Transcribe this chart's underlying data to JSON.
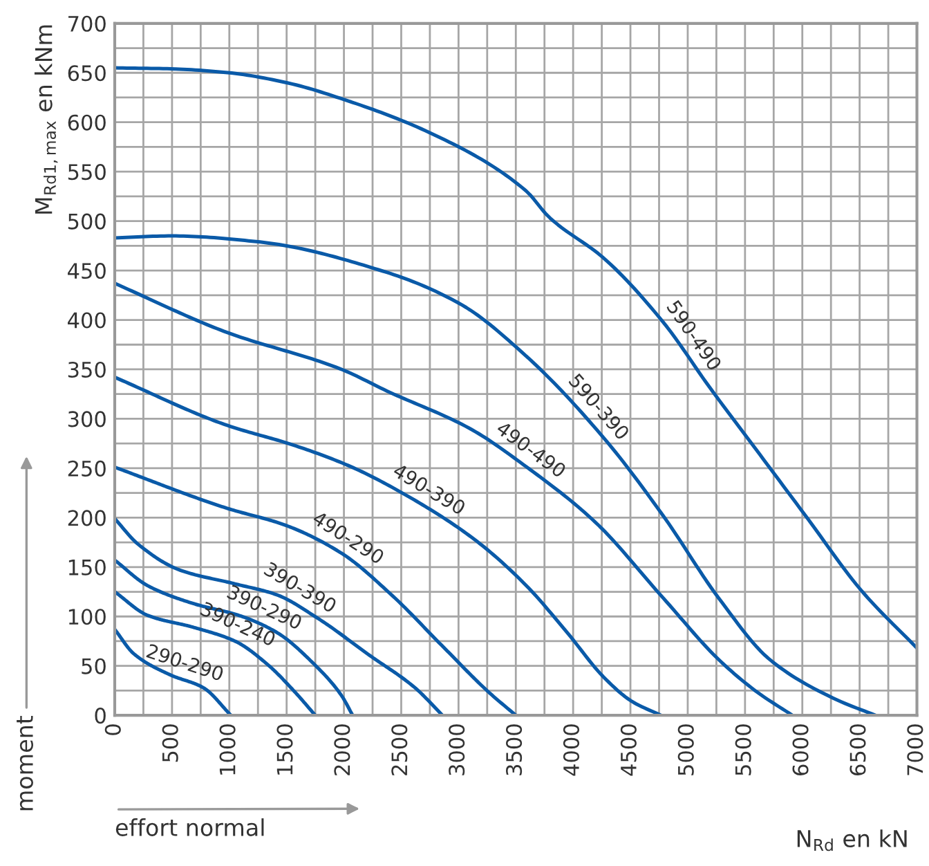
{
  "chart_data": {
    "type": "line",
    "xlabel": "N$_{Rd}$ en kN",
    "ylabel": "M$_{Rd1,max}$ en kNm",
    "xlim": [
      0,
      7000
    ],
    "ylim": [
      0,
      700
    ],
    "xticks": [
      0,
      {
        "value": 250,
        "label": null
      },
      500,
      {
        "value": 750,
        "label": null
      },
      1000,
      {
        "value": 1250,
        "label": null
      },
      1500,
      {
        "value": 1750,
        "label": null
      },
      2000,
      {
        "value": 2250,
        "label": null
      },
      2500,
      {
        "value": 2750,
        "label": null
      },
      3000,
      {
        "value": 3250,
        "label": null
      },
      3500,
      {
        "value": 3750,
        "label": null
      },
      4000,
      {
        "value": 4250,
        "label": null
      },
      4500,
      {
        "value": 4750,
        "label": null
      },
      5000,
      {
        "value": 5250,
        "label": null
      },
      5500,
      {
        "value": 5750,
        "label": null
      },
      6000,
      {
        "value": 6250,
        "label": null
      },
      6500,
      {
        "value": 6750,
        "label": null
      },
      7000
    ],
    "yticks": [
      0,
      {
        "value": 25,
        "label": null
      },
      50,
      {
        "value": 75,
        "label": null
      },
      100,
      {
        "value": 125,
        "label": null
      },
      150,
      {
        "value": 175,
        "label": null
      },
      200,
      {
        "value": 225,
        "label": null
      },
      250,
      {
        "value": 275,
        "label": null
      },
      300,
      {
        "value": 325,
        "label": null
      },
      350,
      {
        "value": 375,
        "label": null
      },
      400,
      {
        "value": 425,
        "label": null
      },
      450,
      {
        "value": 475,
        "label": null
      },
      500,
      {
        "value": 525,
        "label": null
      },
      550,
      {
        "value": 575,
        "label": null
      },
      600,
      {
        "value": 625,
        "label": null
      },
      650,
      {
        "value": 675,
        "label": null
      },
      700
    ],
    "grid": true,
    "marker": "none",
    "line_style": "solid",
    "series": [
      {
        "name": "590-490",
        "color": "#0a5aa8",
        "x": [
          0,
          500,
          1000,
          1500,
          2000,
          2775,
          3585,
          3790,
          4272,
          4791,
          5190,
          5551,
          6034,
          6517,
          7000
        ],
        "values": [
          655,
          654,
          650,
          640,
          623,
          588,
          531,
          504,
          462,
          397,
          332,
          276,
          201,
          126,
          68
        ]
      },
      {
        "name": "590-390",
        "color": "#0a5aa8",
        "x": [
          0,
          500,
          1255,
          2377,
          3017,
          3585,
          4272,
          4791,
          5274,
          5720,
          6276,
          6638
        ],
        "values": [
          483,
          485,
          479,
          448,
          416,
          364,
          280,
          201,
          118,
          56,
          17,
          0
        ]
      },
      {
        "name": "490-490",
        "color": "#0a5aa8",
        "x": [
          0,
          965,
          1979,
          2377,
          3101,
          3585,
          4188,
          4791,
          5274,
          5600,
          5913
        ],
        "values": [
          437,
          388,
          350,
          328,
          290,
          252,
          196,
          118,
          56,
          24,
          0
        ]
      },
      {
        "name": "490-390",
        "color": "#0a5aa8",
        "x": [
          0,
          965,
          1569,
          2052,
          2583,
          3138,
          3585,
          3946,
          4272,
          4514,
          4767
        ],
        "values": [
          342,
          294,
          273,
          252,
          220,
          178,
          132,
          84,
          38,
          14,
          0
        ]
      },
      {
        "name": "490-290",
        "color": "#0a5aa8",
        "x": [
          0,
          965,
          1497,
          1979,
          2414,
          2860,
          3258,
          3500
        ],
        "values": [
          251,
          210,
          192,
          164,
          122,
          70,
          24,
          0
        ]
      },
      {
        "name": "390-390",
        "color": "#0a5aa8",
        "x": [
          0,
          205,
          567,
          1050,
          1412,
          1774,
          2220,
          2619,
          2860
        ],
        "values": [
          199,
          173,
          147,
          133,
          122,
          98,
          61,
          28,
          0
        ]
      },
      {
        "name": "390-290",
        "color": "#0a5aa8",
        "x": [
          0,
          290,
          688,
          1086,
          1412,
          1738,
          1979,
          2076
        ],
        "values": [
          157,
          131,
          113,
          101,
          84,
          52,
          20,
          0
        ]
      },
      {
        "name": "390-240",
        "color": "#0a5aa8",
        "x": [
          0,
          290,
          688,
          1050,
          1328,
          1569,
          1750
        ],
        "values": [
          125,
          101,
          89,
          75,
          52,
          24,
          0
        ]
      },
      {
        "name": "290-290",
        "color": "#0a5aa8",
        "x": [
          0,
          169,
          483,
          772,
          1014
        ],
        "values": [
          87,
          62,
          41,
          28,
          0
        ]
      }
    ],
    "annotations": [
      "moment",
      "effort normal"
    ]
  }
}
